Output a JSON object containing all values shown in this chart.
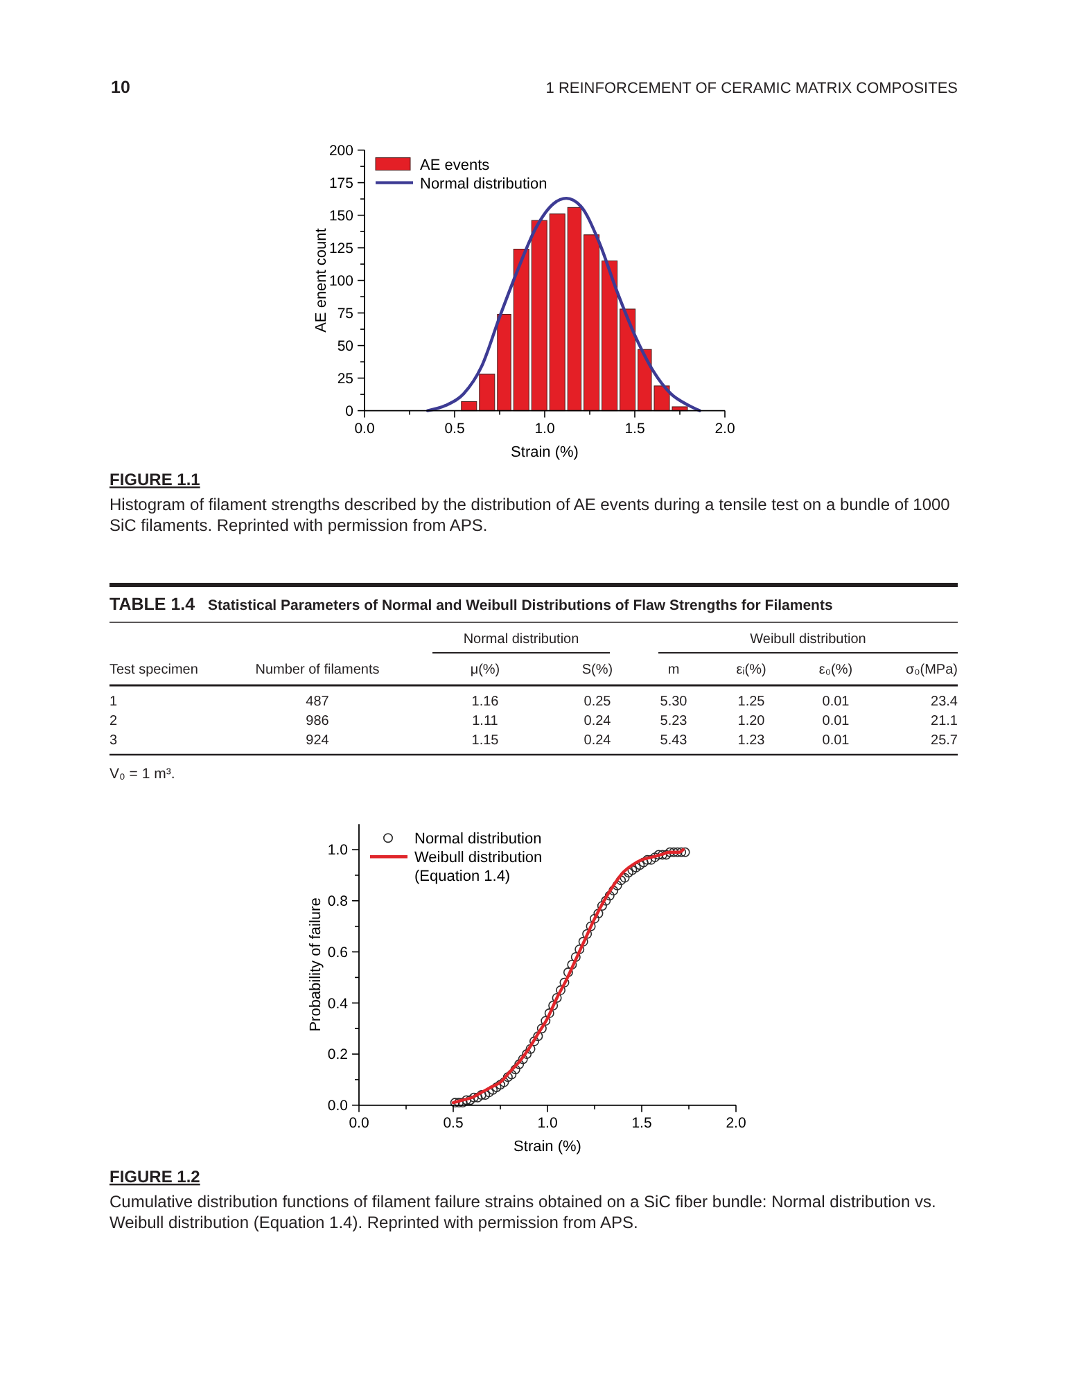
{
  "chart_data": [
    {
      "type": "histogram",
      "xlabel": "Strain (%)",
      "ylabel": "AE enent count",
      "annotations": [
        "10",
        "1 REINFORCEMENT OF CERAMIC MATRIX COMPOSITES",
        "FIGURE 1.1",
        "Histogram of filament strengths described by the distribution of AE events during a tensile test on a bundle of 1000 SiC filaments. Reprinted with permission from APS."
      ],
      "bins": [
        0.53,
        0.63,
        0.73,
        0.82,
        0.92,
        1.02,
        1.12,
        1.21,
        1.31,
        1.41,
        1.51,
        1.6,
        1.7,
        1.8
      ],
      "series": [
        {
          "name": "AE events",
          "type": "histogram",
          "color": "#e41f26",
          "values": [
            7,
            28,
            74,
            124,
            146,
            151,
            156,
            135,
            115,
            78,
            47,
            19,
            3
          ]
        },
        {
          "name": "Normal distribution",
          "type": "line",
          "color": "#3d3b94",
          "x": [
            0.35,
            0.45,
            0.55,
            0.65,
            0.75,
            0.85,
            0.95,
            1.05,
            1.12,
            1.2,
            1.3,
            1.4,
            1.5,
            1.6,
            1.7,
            1.8,
            1.86
          ],
          "values": [
            0,
            4,
            13,
            34,
            72,
            108,
            140,
            159,
            163,
            157,
            130,
            92,
            58,
            31,
            13,
            4,
            0
          ]
        }
      ],
      "xlim": [
        0,
        2
      ],
      "xticks": [
        {
          "value": 0,
          "label": "0.0"
        },
        {
          "value": 0.25,
          "label": null
        },
        {
          "value": 0.5,
          "label": "0.5"
        },
        {
          "value": 0.75,
          "label": null
        },
        {
          "value": 1,
          "label": "1.0"
        },
        {
          "value": 1.25,
          "label": null
        },
        {
          "value": 1.5,
          "label": "1.5"
        },
        {
          "value": 1.75,
          "label": null
        },
        {
          "value": 2,
          "label": "2.0"
        }
      ],
      "ylim": [
        0,
        200
      ],
      "yticks": [
        0,
        {
          "value": 12.5,
          "label": null
        },
        25,
        {
          "value": 37.5,
          "label": null
        },
        50,
        {
          "value": 62.5,
          "label": null
        },
        75,
        {
          "value": 87.5,
          "label": null
        },
        100,
        {
          "value": 112.5,
          "label": null
        },
        125,
        {
          "value": 137.5,
          "label": null
        },
        150,
        {
          "value": 162.5,
          "label": null
        },
        175,
        {
          "value": 187.5,
          "label": null
        },
        200
      ],
      "legend": "top left"
    },
    {
      "type": "other",
      "title": "TABLE 1.4",
      "subtitle": "Statistical Parameters of Normal and Weibull Distributions of Flaw Strengths for Filaments",
      "categories": [
        "Test specimen",
        "Number of filaments",
        "μ(%)",
        "S(%)",
        "m",
        "εᵢ(%)",
        "ε₀(%)",
        "σ₀(MPa)"
      ],
      "cell_labels": [
        [
          "1",
          "487",
          "1.16",
          "0.25",
          "5.30",
          "1.25",
          "0.01",
          "23.4"
        ],
        [
          "2",
          "986",
          "1.11",
          "0.24",
          "5.23",
          "1.20",
          "0.01",
          "21.1"
        ],
        [
          "3",
          "924",
          "1.15",
          "0.24",
          "5.43",
          "1.23",
          "0.01",
          "25.7"
        ]
      ],
      "annotations": [
        "Normal distribution",
        "Weibull distribution",
        "V₀ = 1 m³."
      ]
    },
    {
      "type": "scatter",
      "xlabel": "Strain (%)",
      "ylabel": "Probability of failure",
      "annotations": [
        "FIGURE 1.2",
        "Cumulative distribution functions of filament failure strains obtained on a SiC fiber bundle: Normal distribution vs. Weibull distribution (Equation 1.4). Reprinted with permission from APS."
      ],
      "series": [
        {
          "name": "Normal distribution",
          "type": "scatter",
          "marker": "circle",
          "color": "#2b2b2b",
          "x": [
            0.51,
            0.53,
            0.55,
            0.57,
            0.59,
            0.61,
            0.63,
            0.65,
            0.67,
            0.69,
            0.71,
            0.73,
            0.75,
            0.77,
            0.79,
            0.81,
            0.83,
            0.85,
            0.87,
            0.89,
            0.91,
            0.93,
            0.95,
            0.97,
            0.99,
            1.01,
            1.03,
            1.05,
            1.07,
            1.09,
            1.11,
            1.13,
            1.15,
            1.17,
            1.19,
            1.21,
            1.23,
            1.25,
            1.27,
            1.29,
            1.31,
            1.33,
            1.35,
            1.37,
            1.39,
            1.41,
            1.43,
            1.45,
            1.47,
            1.49,
            1.51,
            1.53,
            1.55,
            1.57,
            1.59,
            1.61,
            1.63,
            1.65,
            1.67,
            1.69,
            1.71,
            1.73
          ],
          "values": [
            0.01,
            0.01,
            0.01,
            0.02,
            0.02,
            0.03,
            0.03,
            0.04,
            0.04,
            0.05,
            0.06,
            0.07,
            0.08,
            0.09,
            0.11,
            0.12,
            0.14,
            0.16,
            0.18,
            0.2,
            0.22,
            0.25,
            0.27,
            0.3,
            0.33,
            0.36,
            0.39,
            0.42,
            0.45,
            0.48,
            0.52,
            0.55,
            0.58,
            0.61,
            0.64,
            0.67,
            0.7,
            0.73,
            0.75,
            0.78,
            0.8,
            0.82,
            0.84,
            0.86,
            0.88,
            0.89,
            0.91,
            0.92,
            0.93,
            0.94,
            0.95,
            0.96,
            0.96,
            0.97,
            0.98,
            0.98,
            0.98,
            0.99,
            0.99,
            0.99,
            0.99,
            0.99
          ]
        },
        {
          "name": "Weibull distribution (Equation 1.4)",
          "type": "line",
          "color": "#e0262b",
          "x": [
            0.5,
            0.55,
            0.6,
            0.65,
            0.7,
            0.75,
            0.8,
            0.85,
            0.9,
            0.95,
            1.0,
            1.05,
            1.1,
            1.15,
            1.2,
            1.25,
            1.3,
            1.35,
            1.4,
            1.45,
            1.5,
            1.55,
            1.6,
            1.65,
            1.7,
            1.72
          ],
          "values": [
            0.01,
            0.02,
            0.03,
            0.05,
            0.07,
            0.09,
            0.13,
            0.17,
            0.22,
            0.28,
            0.34,
            0.42,
            0.49,
            0.57,
            0.65,
            0.73,
            0.8,
            0.86,
            0.91,
            0.94,
            0.96,
            0.97,
            0.98,
            0.99,
            0.99,
            1.0
          ]
        }
      ],
      "xlim": [
        0,
        2
      ],
      "xticks": [
        {
          "value": 0,
          "label": "0.0"
        },
        {
          "value": 0.25,
          "label": null
        },
        {
          "value": 0.5,
          "label": "0.5"
        },
        {
          "value": 0.75,
          "label": null
        },
        {
          "value": 1,
          "label": "1.0"
        },
        {
          "value": 1.25,
          "label": null
        },
        {
          "value": 1.5,
          "label": "1.5"
        },
        {
          "value": 1.75,
          "label": null
        },
        {
          "value": 2,
          "label": "2.0"
        }
      ],
      "ylim": [
        0,
        1.1
      ],
      "yticks": [
        {
          "value": 0,
          "label": "0.0"
        },
        {
          "value": 0.1,
          "label": null
        },
        {
          "value": 0.2,
          "label": "0.2"
        },
        {
          "value": 0.3,
          "label": null
        },
        {
          "value": 0.4,
          "label": "0.4"
        },
        {
          "value": 0.5,
          "label": null
        },
        {
          "value": 0.6,
          "label": "0.6"
        },
        {
          "value": 0.7,
          "label": null
        },
        {
          "value": 0.8,
          "label": "0.8"
        },
        {
          "value": 0.9,
          "label": null
        },
        {
          "value": 1,
          "label": "1.0"
        }
      ],
      "legend": "top left"
    }
  ]
}
